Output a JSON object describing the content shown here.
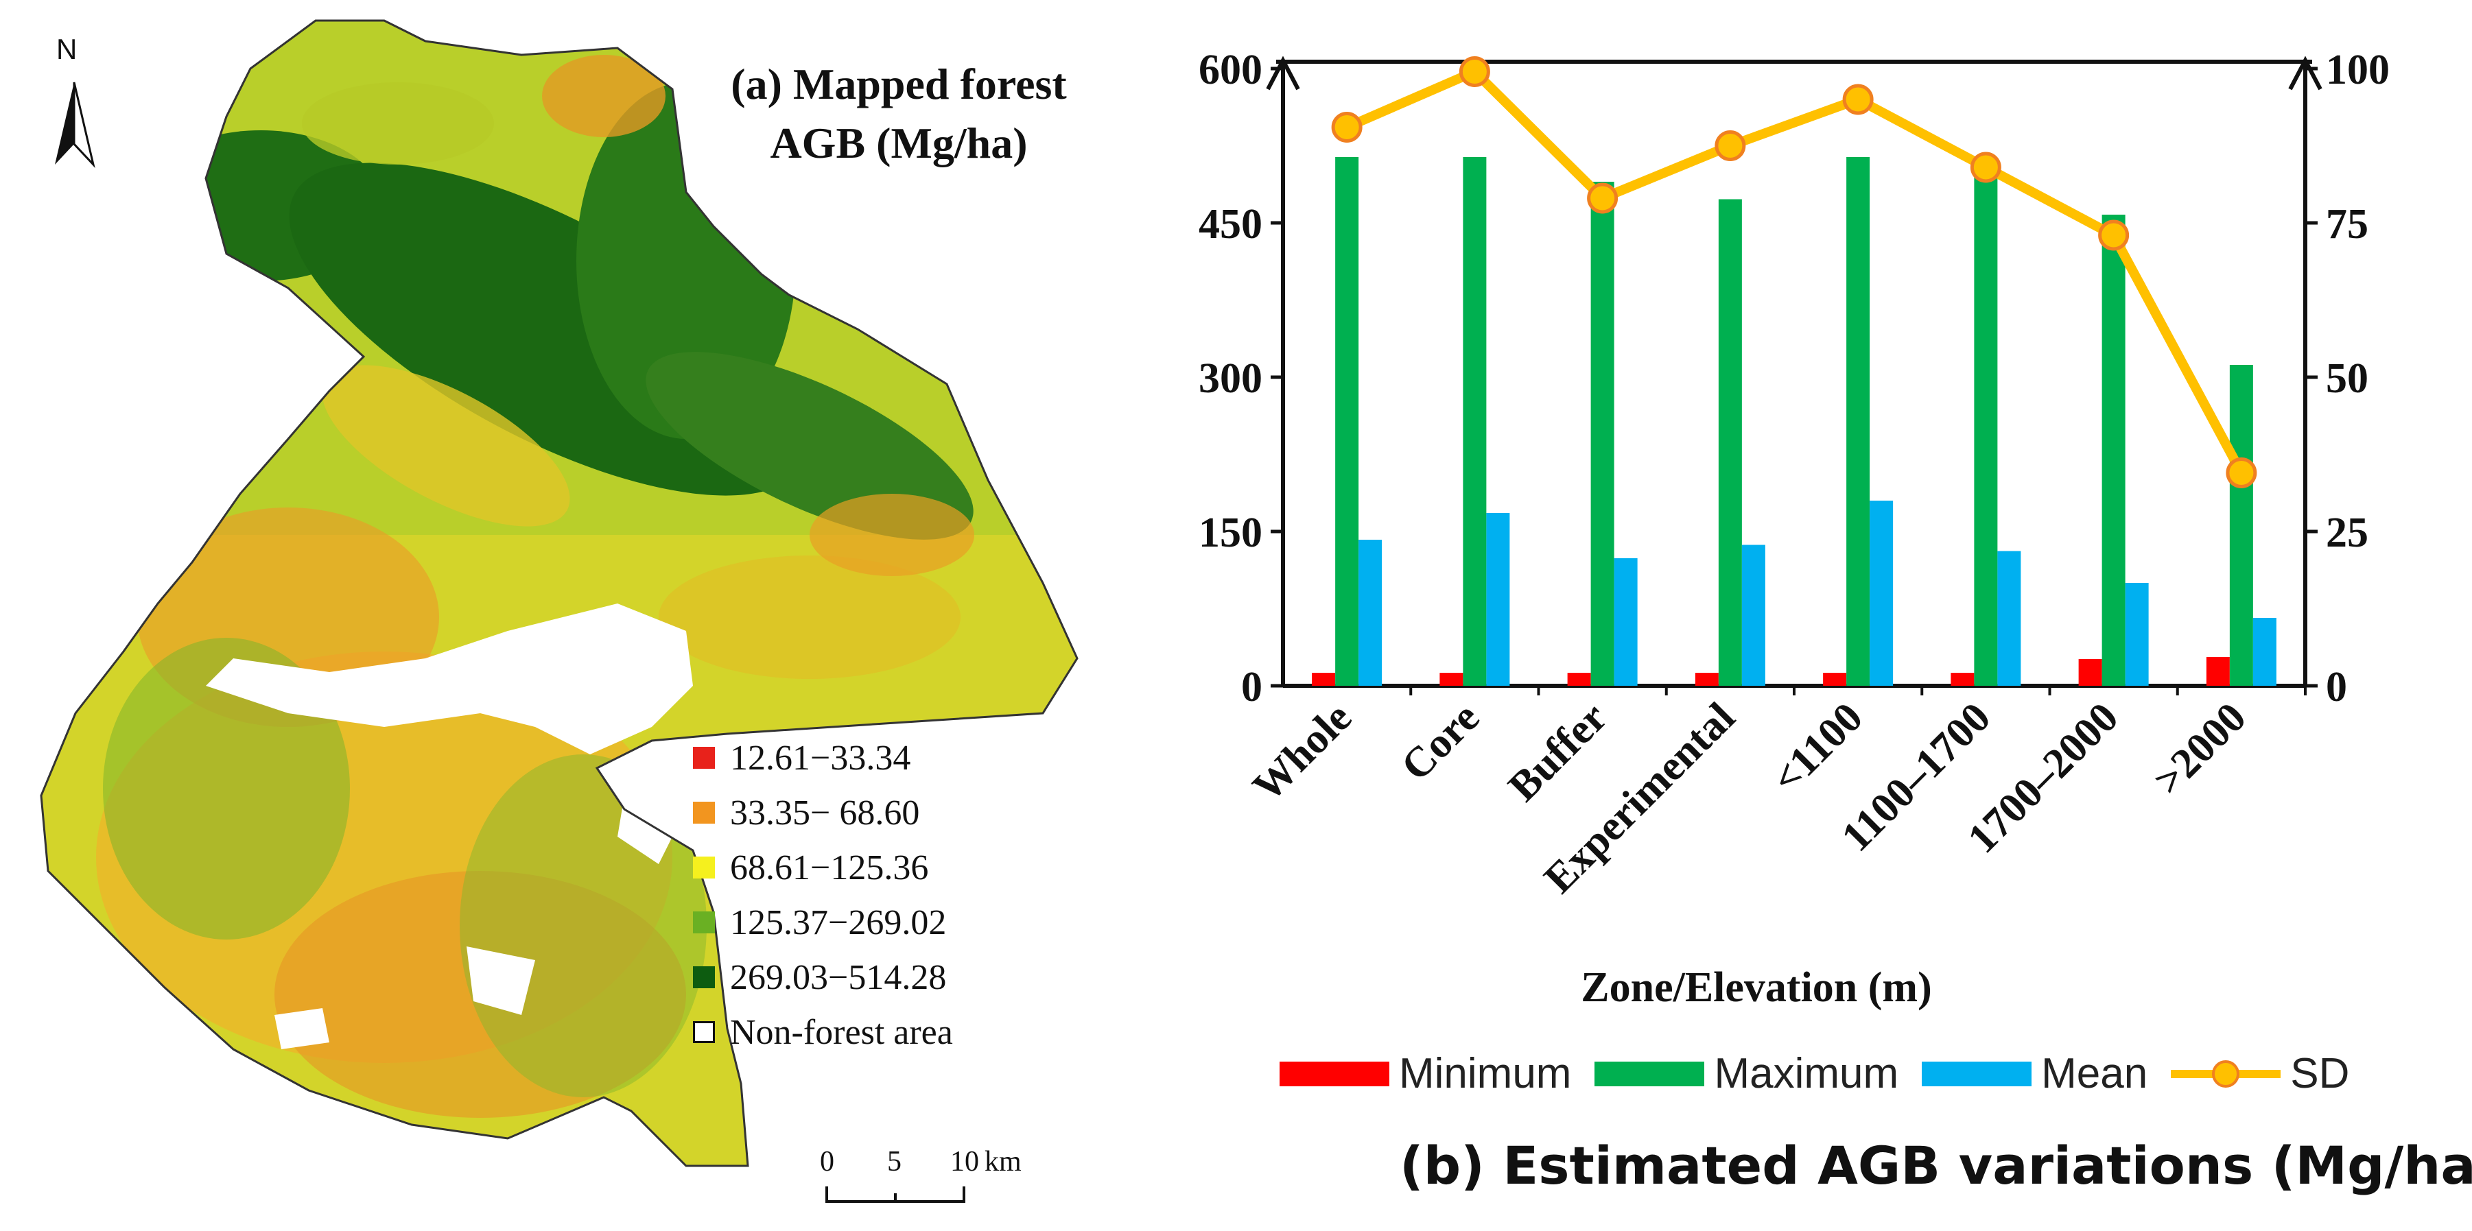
{
  "map": {
    "title_line1": "(a) Mapped forest",
    "title_line2": "AGB (Mg/ha)",
    "north_label": "N",
    "legend": [
      {
        "label": "12.61−33.34",
        "color": "#e8221b"
      },
      {
        "label": "33.35− 68.60",
        "color": "#f2951f"
      },
      {
        "label": "68.61−125.36",
        "color": "#f5f01e"
      },
      {
        "label": "125.37−269.02",
        "color": "#6ab023"
      },
      {
        "label": "269.03−514.28",
        "color": "#0d5c10"
      },
      {
        "label": "Non-forest area",
        "color": "#ffffff"
      }
    ],
    "scale": {
      "ticks": [
        "0",
        "5",
        "10"
      ],
      "unit": "km"
    }
  },
  "chart_data": {
    "type": "bar",
    "title": "(b) Estimated AGB variations (Mg/ha)",
    "xlabel": "Zone/Elevation (m)",
    "ylabel": "",
    "categories": [
      "Whole",
      "Core",
      "Buffer",
      "Experimental",
      "<1100",
      "1100–1700",
      "1700–2000",
      ">2000"
    ],
    "ylim": [
      0,
      600
    ],
    "yticks": [
      "0",
      "150",
      "300",
      "450",
      "600"
    ],
    "y2lim": [
      0,
      100
    ],
    "y2ticks": [
      "0",
      "25",
      "50",
      "75",
      "100"
    ],
    "series": [
      {
        "name": "Minimum",
        "color": "#ff0000",
        "axis": "left",
        "values": [
          12.6,
          12.6,
          12.6,
          12.6,
          12.6,
          12.6,
          26,
          28
        ]
      },
      {
        "name": "Maximum",
        "color": "#00b050",
        "axis": "left",
        "values": [
          514,
          514,
          490,
          473,
          514,
          498,
          458,
          312
        ]
      },
      {
        "name": "Mean",
        "color": "#00b0f0",
        "axis": "left",
        "values": [
          142,
          168,
          124,
          137,
          180,
          131,
          100,
          66
        ]
      },
      {
        "name": "SD",
        "color": "#ffc000",
        "marker_edge": "#f08020",
        "type": "line",
        "axis": "right",
        "values": [
          90.5,
          99.5,
          79,
          87.5,
          95,
          84,
          73,
          34.5
        ]
      }
    ]
  }
}
